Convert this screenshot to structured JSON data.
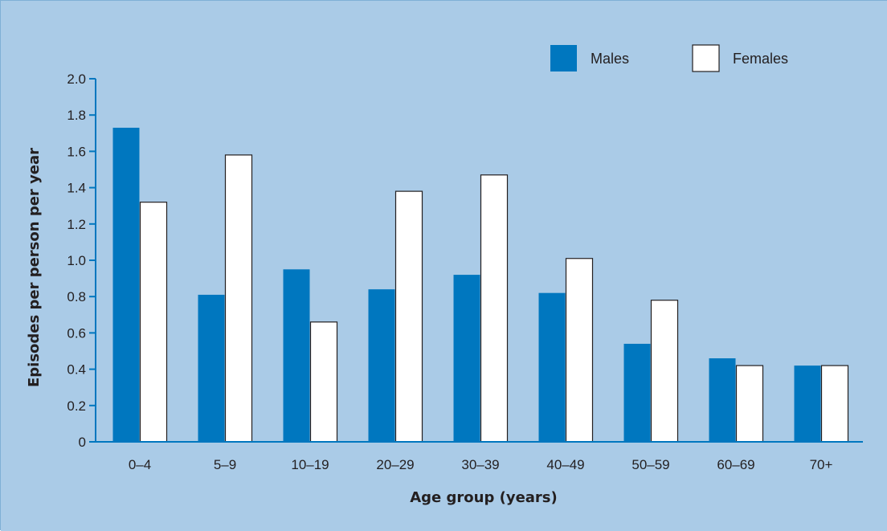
{
  "chart_data": {
    "type": "bar",
    "xlabel": "Age group (years)",
    "ylabel": "Episodes per person per year",
    "ylim": [
      0,
      2.0
    ],
    "yticks": [
      0,
      0.2,
      0.4,
      0.6,
      0.8,
      1.0,
      1.2,
      1.4,
      1.6,
      1.8,
      2.0
    ],
    "ytick_labels": [
      "0",
      "0.2",
      "0.4",
      "0.6",
      "0.8",
      "1.0",
      "1.2",
      "1.4",
      "1.6",
      "1.8",
      "2.0"
    ],
    "categories": [
      "0–4",
      "5–9",
      "10–19",
      "20–29",
      "30–39",
      "40–49",
      "50–59",
      "60–69",
      "70+"
    ],
    "series": [
      {
        "name": "Males",
        "color": "#0077bf",
        "values": [
          1.73,
          0.81,
          0.95,
          0.84,
          0.92,
          0.82,
          0.54,
          0.46,
          0.42
        ]
      },
      {
        "name": "Females",
        "color": "#ffffff",
        "values": [
          1.32,
          1.58,
          0.66,
          1.38,
          1.47,
          1.01,
          0.78,
          0.42,
          0.42
        ]
      }
    ],
    "legend_position": "top-right",
    "grid": false
  },
  "colors": {
    "background": "#aacbe7",
    "axis": "#0077bf",
    "bar_outline": "#231f20"
  }
}
